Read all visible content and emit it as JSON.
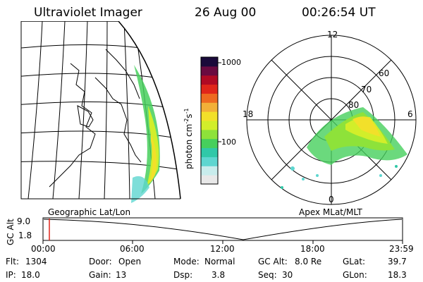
{
  "header": {
    "title": "Ultraviolet Imager",
    "date": "26 Aug 00",
    "time": "00:26:54 UT"
  },
  "colorbar": {
    "unit": "photon cm",
    "unit_sup1": "-2",
    "unit_mid": "s",
    "unit_sup2": "-1",
    "tick_1000": "1000",
    "tick_100": "100",
    "colors": [
      "#e8e8e8",
      "#c8ecec",
      "#5ed6d0",
      "#30c8a8",
      "#46cf5c",
      "#8ee23a",
      "#d2ee2a",
      "#f2e02a",
      "#f2b038",
      "#ee6a20",
      "#e0261a",
      "#b00a24",
      "#6a0a40",
      "#1a0a3a"
    ]
  },
  "panels": {
    "left_label": "Geographic Lat/Lon",
    "right_label": "Apex MLat/MLT"
  },
  "polar": {
    "mlt_12": "12",
    "mlt_18": "18",
    "mlt_6": "6",
    "mlt_0": "0",
    "lat_60": "60",
    "lat_70": "70",
    "lat_80": "80"
  },
  "timeline": {
    "y_title": "GC Alt",
    "y_top": "9.0",
    "y_bottom": "1.8",
    "ticks": [
      "00:00",
      "06:00",
      "12:00",
      "18:00",
      "23:59"
    ]
  },
  "info": {
    "flt_label": "Flt:",
    "flt_value": "1304",
    "ip_label": "IP:",
    "ip_value": "18.0",
    "door_label": "Door:",
    "door_value": "Open",
    "gain_label": "Gain:",
    "gain_value": "13",
    "mode_label": "Mode:",
    "mode_value": "Normal",
    "dsp_label": "Dsp:",
    "dsp_value": "3.8",
    "gcalt_label": "GC Alt:",
    "gcalt_value": "8.0 Re",
    "seq_label": "Seq:",
    "seq_value": "30",
    "glat_label": "GLat:",
    "glat_value": "39.7",
    "glon_label": "GLon:",
    "glon_value": "18.3"
  }
}
